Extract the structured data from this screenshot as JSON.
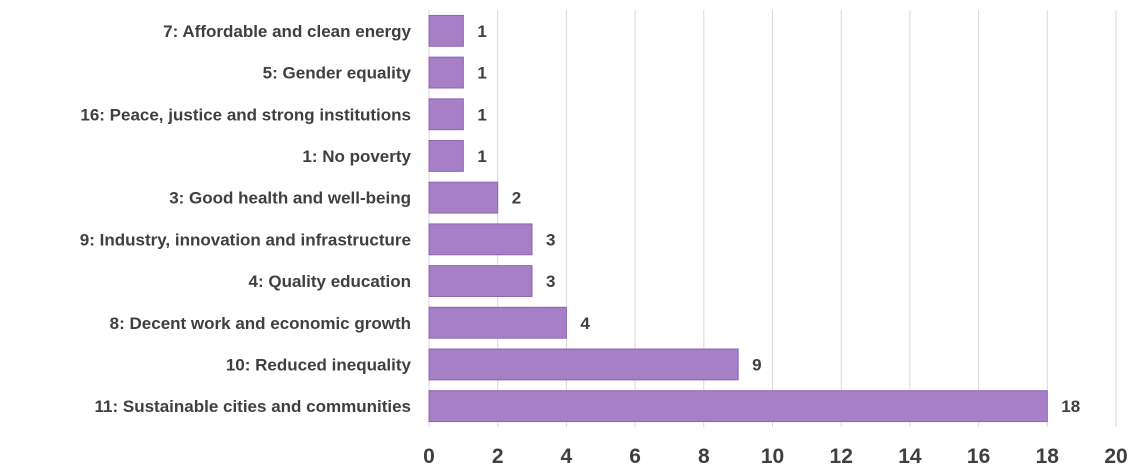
{
  "chart_data": {
    "type": "bar",
    "orientation": "horizontal",
    "categories": [
      "7: Affordable and clean energy",
      "5: Gender equality",
      "16: Peace, justice and strong institutions",
      "1: No poverty",
      "3: Good health and well-being",
      "9: Industry, innovation and infrastructure",
      "4: Quality education",
      "8: Decent work and economic growth",
      "10: Reduced inequality",
      "11: Sustainable cities and communities"
    ],
    "values": [
      1,
      1,
      1,
      1,
      2,
      3,
      3,
      4,
      9,
      18
    ],
    "xlim": [
      0,
      20
    ],
    "xticks": [
      "0",
      "2",
      "4",
      "6",
      "8",
      "10",
      "12",
      "14",
      "16",
      "18",
      "20"
    ],
    "title": "",
    "xlabel": "",
    "ylabel": "",
    "grid": "vertical",
    "bar_color": "#a77fc6",
    "bar_border_color": "#8e63b3"
  }
}
